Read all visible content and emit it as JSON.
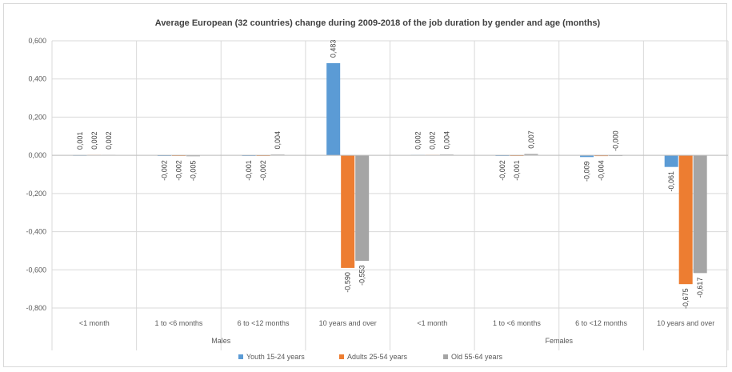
{
  "chart_data": {
    "type": "bar",
    "title": "Average European (32 countries) change during 2009-2018 of the job duration by gender and age (months)",
    "groups": [
      "Males",
      "Females"
    ],
    "categories": [
      "<1 month",
      "1 to <6 months",
      "6 to <12 months",
      "10 years and over",
      "<1 month",
      "1 to <6 months",
      "6 to <12 months",
      "10 years and over"
    ],
    "category_group": [
      0,
      0,
      0,
      0,
      1,
      1,
      1,
      1
    ],
    "series": [
      {
        "name": "Youth 15-24 years",
        "color": "#5b9bd5",
        "values": [
          0.001,
          -0.002,
          -0.001,
          0.483,
          0.002,
          -0.002,
          -0.009,
          -0.061
        ],
        "labels": [
          "0,001",
          "-0,002",
          "-0,001",
          "0,483",
          "0,002",
          "-0,002",
          "-0,009",
          "-0,061"
        ]
      },
      {
        "name": "Adults 25-54 years",
        "color": "#ed7d31",
        "values": [
          0.002,
          -0.002,
          -0.002,
          -0.59,
          0.002,
          -0.001,
          -0.004,
          -0.675
        ],
        "labels": [
          "0,002",
          "-0,002",
          "-0,002",
          "-0,590",
          "0,002",
          "-0,001",
          "-0,004",
          "-0,675"
        ]
      },
      {
        "name": "Old 55-64 years",
        "color": "#a5a5a5",
        "values": [
          0.002,
          -0.005,
          0.004,
          -0.553,
          0.004,
          0.007,
          -0.0,
          -0.617
        ],
        "labels": [
          "0,002",
          "-0,005",
          "0,004",
          "-0,553",
          "0,004",
          "0,007",
          "-0,000",
          "-0,617"
        ]
      }
    ],
    "ylim": [
      -0.8,
      0.6
    ],
    "yticks": [
      0.6,
      0.4,
      0.2,
      0.0,
      -0.2,
      -0.4,
      -0.6,
      -0.8
    ],
    "ytick_labels": [
      "0,600",
      "0,400",
      "0,200",
      "0,000",
      "-0,200",
      "-0,400",
      "-0,600",
      "-0,800"
    ],
    "grid": true,
    "legend_position": "bottom"
  }
}
